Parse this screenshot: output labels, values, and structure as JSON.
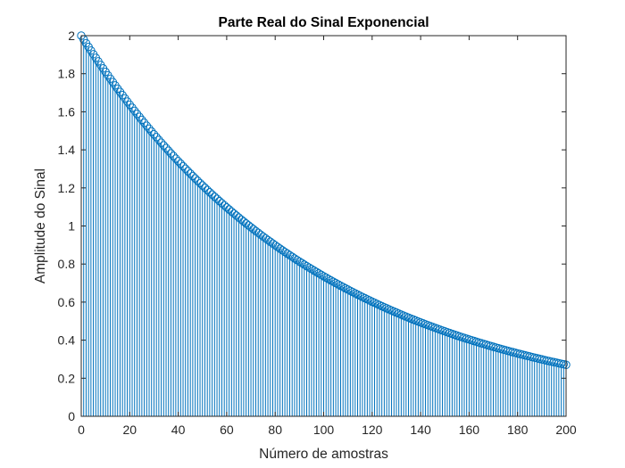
{
  "chart_data": {
    "type": "stem",
    "title": "Parte Real do Sinal Exponencial",
    "xlabel": "Número de amostras",
    "ylabel": "Amplitude do Sinal",
    "xlim": [
      0,
      200
    ],
    "ylim": [
      0,
      2
    ],
    "xticks": [
      0,
      20,
      40,
      60,
      80,
      100,
      120,
      140,
      160,
      180,
      200
    ],
    "xtick_labels": [
      "0",
      "20",
      "40",
      "60",
      "80",
      "100",
      "120",
      "140",
      "160",
      "180",
      "200"
    ],
    "yticks": [
      0,
      0.2,
      0.4,
      0.6,
      0.8,
      1,
      1.2,
      1.4,
      1.6,
      1.8,
      2
    ],
    "ytick_labels": [
      "0",
      "0.2",
      "0.4",
      "0.6",
      "0.8",
      "1",
      "1.2",
      "1.4",
      "1.6",
      "1.8",
      "2"
    ],
    "grid": false,
    "series": [
      {
        "formula": "y = 2 * exp(-0.01 * n)",
        "x_start": 0,
        "x_end": 200,
        "x_step": 1,
        "color": "#0072BD",
        "marker": "open-circle"
      }
    ]
  }
}
